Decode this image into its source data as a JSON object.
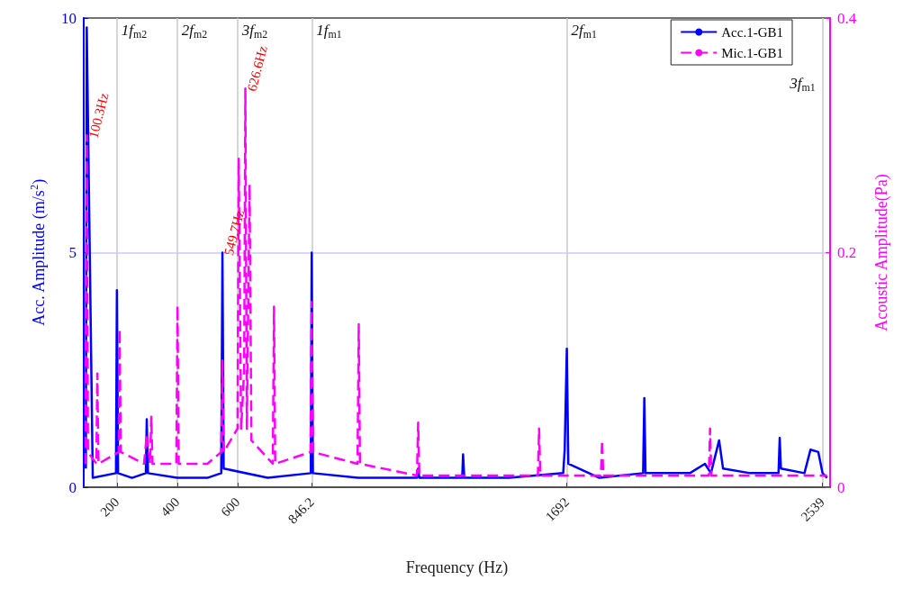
{
  "chart_data": {
    "type": "line",
    "xlabel": "Frequency (Hz)",
    "ylabel": "Acc. Amplitude (m/s$^{2}$)",
    "y2label": "Acoustic Amplitude(Pa)",
    "xlim": [
      90,
      2565
    ],
    "xticks": [
      200,
      400,
      600,
      846.2,
      1692,
      2539
    ],
    "ylim": [
      0,
      10
    ],
    "yticks": [
      0,
      5,
      10
    ],
    "y2lim": [
      0,
      0.4
    ],
    "y2ticks": [
      0,
      0.2,
      0.4
    ],
    "legend": "top right",
    "marker": "none",
    "series": [
      {
        "name": "Acc.1-GB1",
        "color": "#0000ff",
        "line_style": "solid",
        "x": [
          97,
          100,
          120,
          197,
          200,
          204,
          250,
          296,
          299,
          303,
          400,
          500,
          546,
          550,
          554,
          700,
          843,
          846,
          850,
          1000,
          1195,
          1199,
          1203,
          1345,
          1348,
          1352,
          1500,
          1680,
          1685,
          1692,
          1697,
          1800,
          1945,
          1949,
          1953,
          2100,
          2150,
          2170,
          2197,
          2210,
          2300,
          2394,
          2398,
          2402,
          2480,
          2500,
          2526,
          2540,
          2555
        ],
        "values": [
          0.4,
          9.8,
          0.2,
          0.3,
          4.2,
          0.3,
          0.2,
          0.3,
          1.45,
          0.3,
          0.2,
          0.2,
          0.3,
          5.0,
          0.4,
          0.2,
          0.3,
          5.0,
          0.3,
          0.2,
          0.2,
          0.4,
          0.2,
          0.2,
          0.7,
          0.2,
          0.2,
          0.3,
          0.8,
          2.95,
          0.5,
          0.2,
          0.3,
          1.9,
          0.3,
          0.3,
          0.5,
          0.3,
          1.0,
          0.4,
          0.3,
          0.3,
          1.05,
          0.4,
          0.3,
          0.8,
          0.75,
          0.3,
          0.2
        ]
      },
      {
        "name": "Mic.1-GB1",
        "color": "#ff00ff",
        "line_style": "dashed",
        "axis": "y2",
        "x": [
          96,
          100,
          104,
          132,
          135,
          139,
          206,
          209,
          213,
          290,
          299,
          310,
          314,
          318,
          397,
          401,
          405,
          500,
          546,
          550,
          554,
          600,
          604,
          612,
          622,
          626,
          631,
          640,
          646,
          717,
          721,
          725,
          842,
          846,
          850,
          998,
          1002,
          1006,
          1195,
          1199,
          1203,
          1400,
          1596,
          1600,
          1604,
          1805,
          1809,
          1813,
          2163,
          2167,
          2171,
          2555
        ],
        "values": [
          0.02,
          0.3,
          0.03,
          0.02,
          0.097,
          0.02,
          0.03,
          0.135,
          0.03,
          0.02,
          0.045,
          0.02,
          0.06,
          0.02,
          0.02,
          0.155,
          0.02,
          0.02,
          0.03,
          0.108,
          0.03,
          0.05,
          0.28,
          0.05,
          0.1,
          0.34,
          0.05,
          0.258,
          0.04,
          0.02,
          0.154,
          0.02,
          0.03,
          0.158,
          0.03,
          0.02,
          0.139,
          0.02,
          0.01,
          0.055,
          0.01,
          0.01,
          0.01,
          0.05,
          0.01,
          0.01,
          0.04,
          0.01,
          0.01,
          0.05,
          0.01,
          0.01
        ]
      }
    ],
    "ref_lines": [
      {
        "axis": "x",
        "value": 200,
        "label": "1f$_{m2}$",
        "color": "#c8c8c8"
      },
      {
        "axis": "x",
        "value": 400,
        "label": "2f$_{m2}$",
        "color": "#c8c8c8"
      },
      {
        "axis": "x",
        "value": 600,
        "label": "3f$_{m2}$",
        "color": "#c8c8c8"
      },
      {
        "axis": "x",
        "value": 846.2,
        "label": "1f$_{m1}$",
        "color": "#c8c8c8"
      },
      {
        "axis": "x",
        "value": 1692,
        "label": "2f$_{m1}$",
        "color": "#c8c8c8"
      },
      {
        "axis": "x",
        "value": 2539,
        "label": "3f$_{m1}$",
        "color": "#c8c8c8"
      },
      {
        "axis": "y",
        "value": 5,
        "color": "#c8c8ff"
      }
    ],
    "annotations": [
      {
        "text": "100.3Hz",
        "x": 100.3,
        "y": 7.5
      },
      {
        "text": "549.7Hz",
        "x": 549.7,
        "y": 5
      },
      {
        "text": "626.6Hz",
        "x": 626.6,
        "y": 8.5
      }
    ]
  }
}
